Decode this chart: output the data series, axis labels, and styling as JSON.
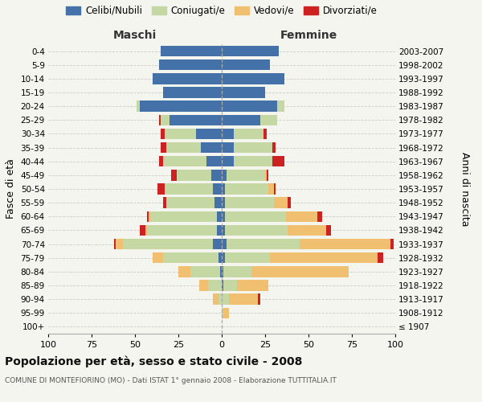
{
  "age_groups": [
    "100+",
    "95-99",
    "90-94",
    "85-89",
    "80-84",
    "75-79",
    "70-74",
    "65-69",
    "60-64",
    "55-59",
    "50-54",
    "45-49",
    "40-44",
    "35-39",
    "30-34",
    "25-29",
    "20-24",
    "15-19",
    "10-14",
    "5-9",
    "0-4"
  ],
  "birth_years": [
    "≤ 1907",
    "1908-1912",
    "1913-1917",
    "1918-1922",
    "1923-1927",
    "1928-1932",
    "1933-1937",
    "1938-1942",
    "1943-1947",
    "1948-1952",
    "1953-1957",
    "1958-1962",
    "1963-1967",
    "1968-1972",
    "1973-1977",
    "1978-1982",
    "1983-1987",
    "1988-1992",
    "1993-1997",
    "1998-2002",
    "2003-2007"
  ],
  "male": {
    "celibi": [
      0,
      0,
      0,
      0,
      1,
      2,
      5,
      3,
      3,
      4,
      5,
      6,
      9,
      12,
      15,
      30,
      47,
      34,
      40,
      36,
      35
    ],
    "coniugati": [
      0,
      0,
      2,
      8,
      17,
      32,
      52,
      40,
      38,
      28,
      28,
      20,
      25,
      20,
      18,
      5,
      2,
      0,
      0,
      0,
      0
    ],
    "vedovi": [
      0,
      0,
      3,
      5,
      7,
      6,
      4,
      1,
      1,
      0,
      0,
      0,
      0,
      0,
      0,
      0,
      0,
      0,
      0,
      0,
      0
    ],
    "divorziati": [
      0,
      0,
      0,
      0,
      0,
      0,
      1,
      3,
      1,
      2,
      4,
      3,
      2,
      3,
      2,
      1,
      0,
      0,
      0,
      0,
      0
    ]
  },
  "female": {
    "nubili": [
      0,
      0,
      0,
      1,
      1,
      2,
      3,
      2,
      2,
      2,
      2,
      3,
      7,
      7,
      7,
      22,
      32,
      25,
      36,
      28,
      33
    ],
    "coniugate": [
      0,
      1,
      4,
      8,
      16,
      26,
      42,
      36,
      35,
      28,
      25,
      22,
      22,
      22,
      17,
      10,
      4,
      0,
      0,
      0,
      0
    ],
    "vedove": [
      0,
      3,
      17,
      18,
      56,
      62,
      52,
      22,
      18,
      8,
      3,
      1,
      0,
      0,
      0,
      0,
      0,
      0,
      0,
      0,
      0
    ],
    "divorziate": [
      0,
      0,
      1,
      0,
      0,
      3,
      2,
      3,
      3,
      2,
      1,
      1,
      7,
      2,
      2,
      0,
      0,
      0,
      0,
      0,
      0
    ]
  },
  "colors": {
    "celibi": "#4472a8",
    "coniugati": "#c5d8a4",
    "vedovi": "#f0c070",
    "divorziati": "#cc2222"
  },
  "xlim": 100,
  "title": "Popolazione per età, sesso e stato civile - 2008",
  "subtitle": "COMUNE DI MONTEFIORINO (MO) - Dati ISTAT 1° gennaio 2008 - Elaborazione TUTTITALIA.IT",
  "ylabel_left": "Fasce di età",
  "ylabel_right": "Anni di nascita",
  "xlabel_male": "Maschi",
  "xlabel_female": "Femmine",
  "legend_labels": [
    "Celibi/Nubili",
    "Coniugati/e",
    "Vedovi/e",
    "Divorziati/e"
  ],
  "bg_color": "#f5f5f0",
  "grid_color": "#cccccc"
}
